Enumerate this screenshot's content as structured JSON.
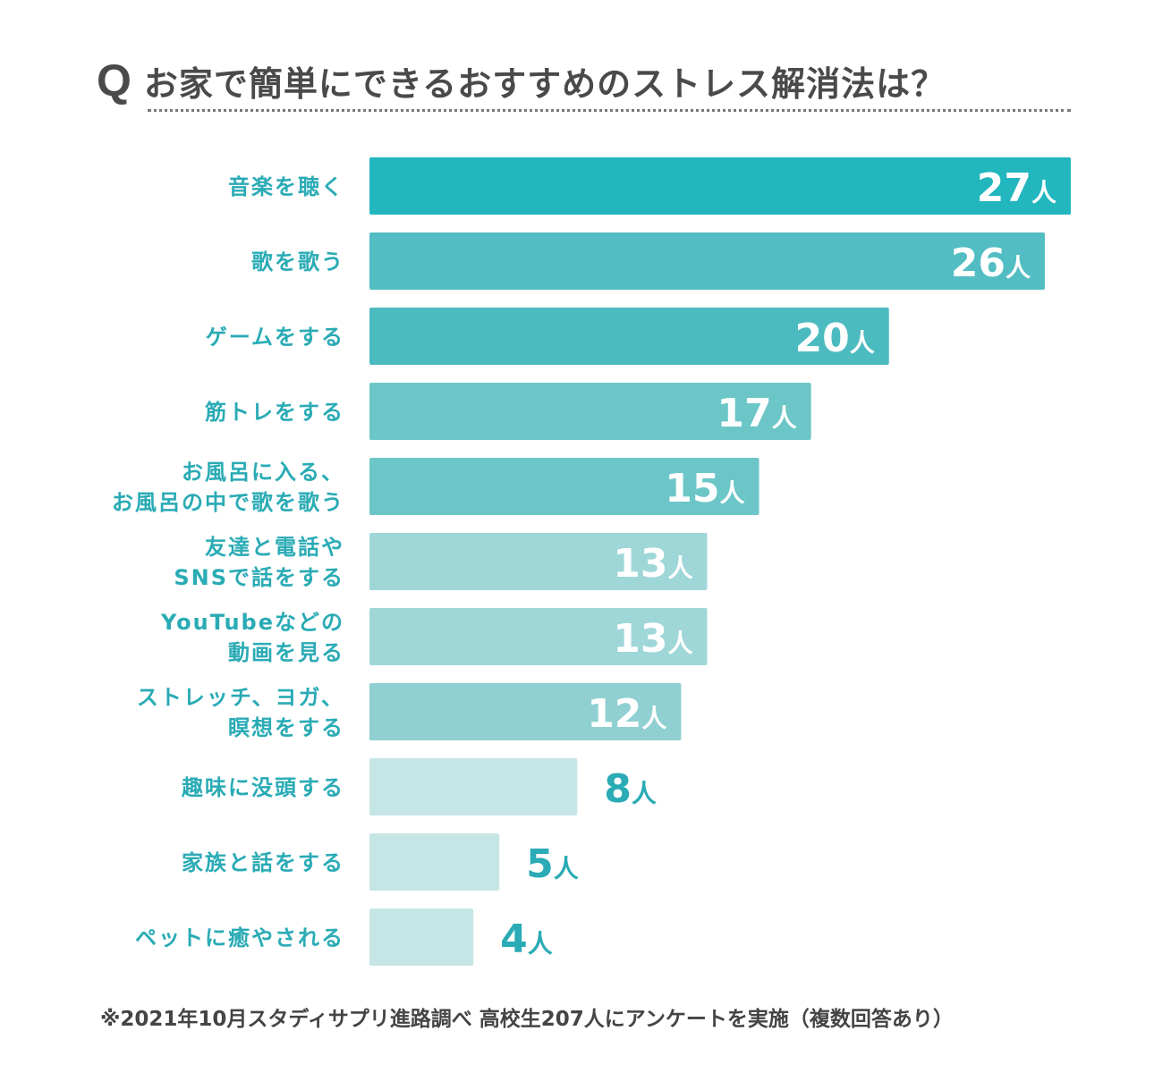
{
  "title": {
    "q": "Q",
    "text": "お家で簡単にできるおすすめのストレス解消法は？"
  },
  "footer": "※2021年10月スタディサプリ進路調べ 高校生207人にアンケートを実施（複数回答あり）",
  "chart_data": {
    "type": "bar",
    "orientation": "horizontal",
    "title": "お家で簡単にできるおすすめのストレス解消法は？",
    "unit": "人",
    "categories": [
      [
        "音楽を聴く"
      ],
      [
        "歌を歌う"
      ],
      [
        "ゲームをする"
      ],
      [
        "筋トレをする"
      ],
      [
        "お風呂に入る、",
        "お風呂の中で歌を歌う"
      ],
      [
        "友達と電話や",
        "SNSで話をする"
      ],
      [
        "YouTubeなどの",
        "動画を見る"
      ],
      [
        "ストレッチ、ヨガ、",
        "瞑想をする"
      ],
      [
        "趣味に没頭する"
      ],
      [
        "家族と話をする"
      ],
      [
        "ペットに癒やされる"
      ]
    ],
    "values": [
      27,
      26,
      20,
      17,
      15,
      13,
      13,
      12,
      8,
      5,
      4
    ],
    "value_labels": [
      "27",
      "26",
      "20",
      "17",
      "15",
      "13",
      "13",
      "12",
      "8",
      "5",
      "4"
    ],
    "colors": [
      "#22b6be",
      "#52bec3",
      "#4cbbc0",
      "#6cc6c8",
      "#6cc6c8",
      "#9fd7d8",
      "#9fd7d8",
      "#90d0d2",
      "#c5e6e5",
      "#c5e6e5",
      "#c5e6e5"
    ],
    "label_color": "#2aabb5",
    "xlim": [
      0,
      27
    ]
  }
}
